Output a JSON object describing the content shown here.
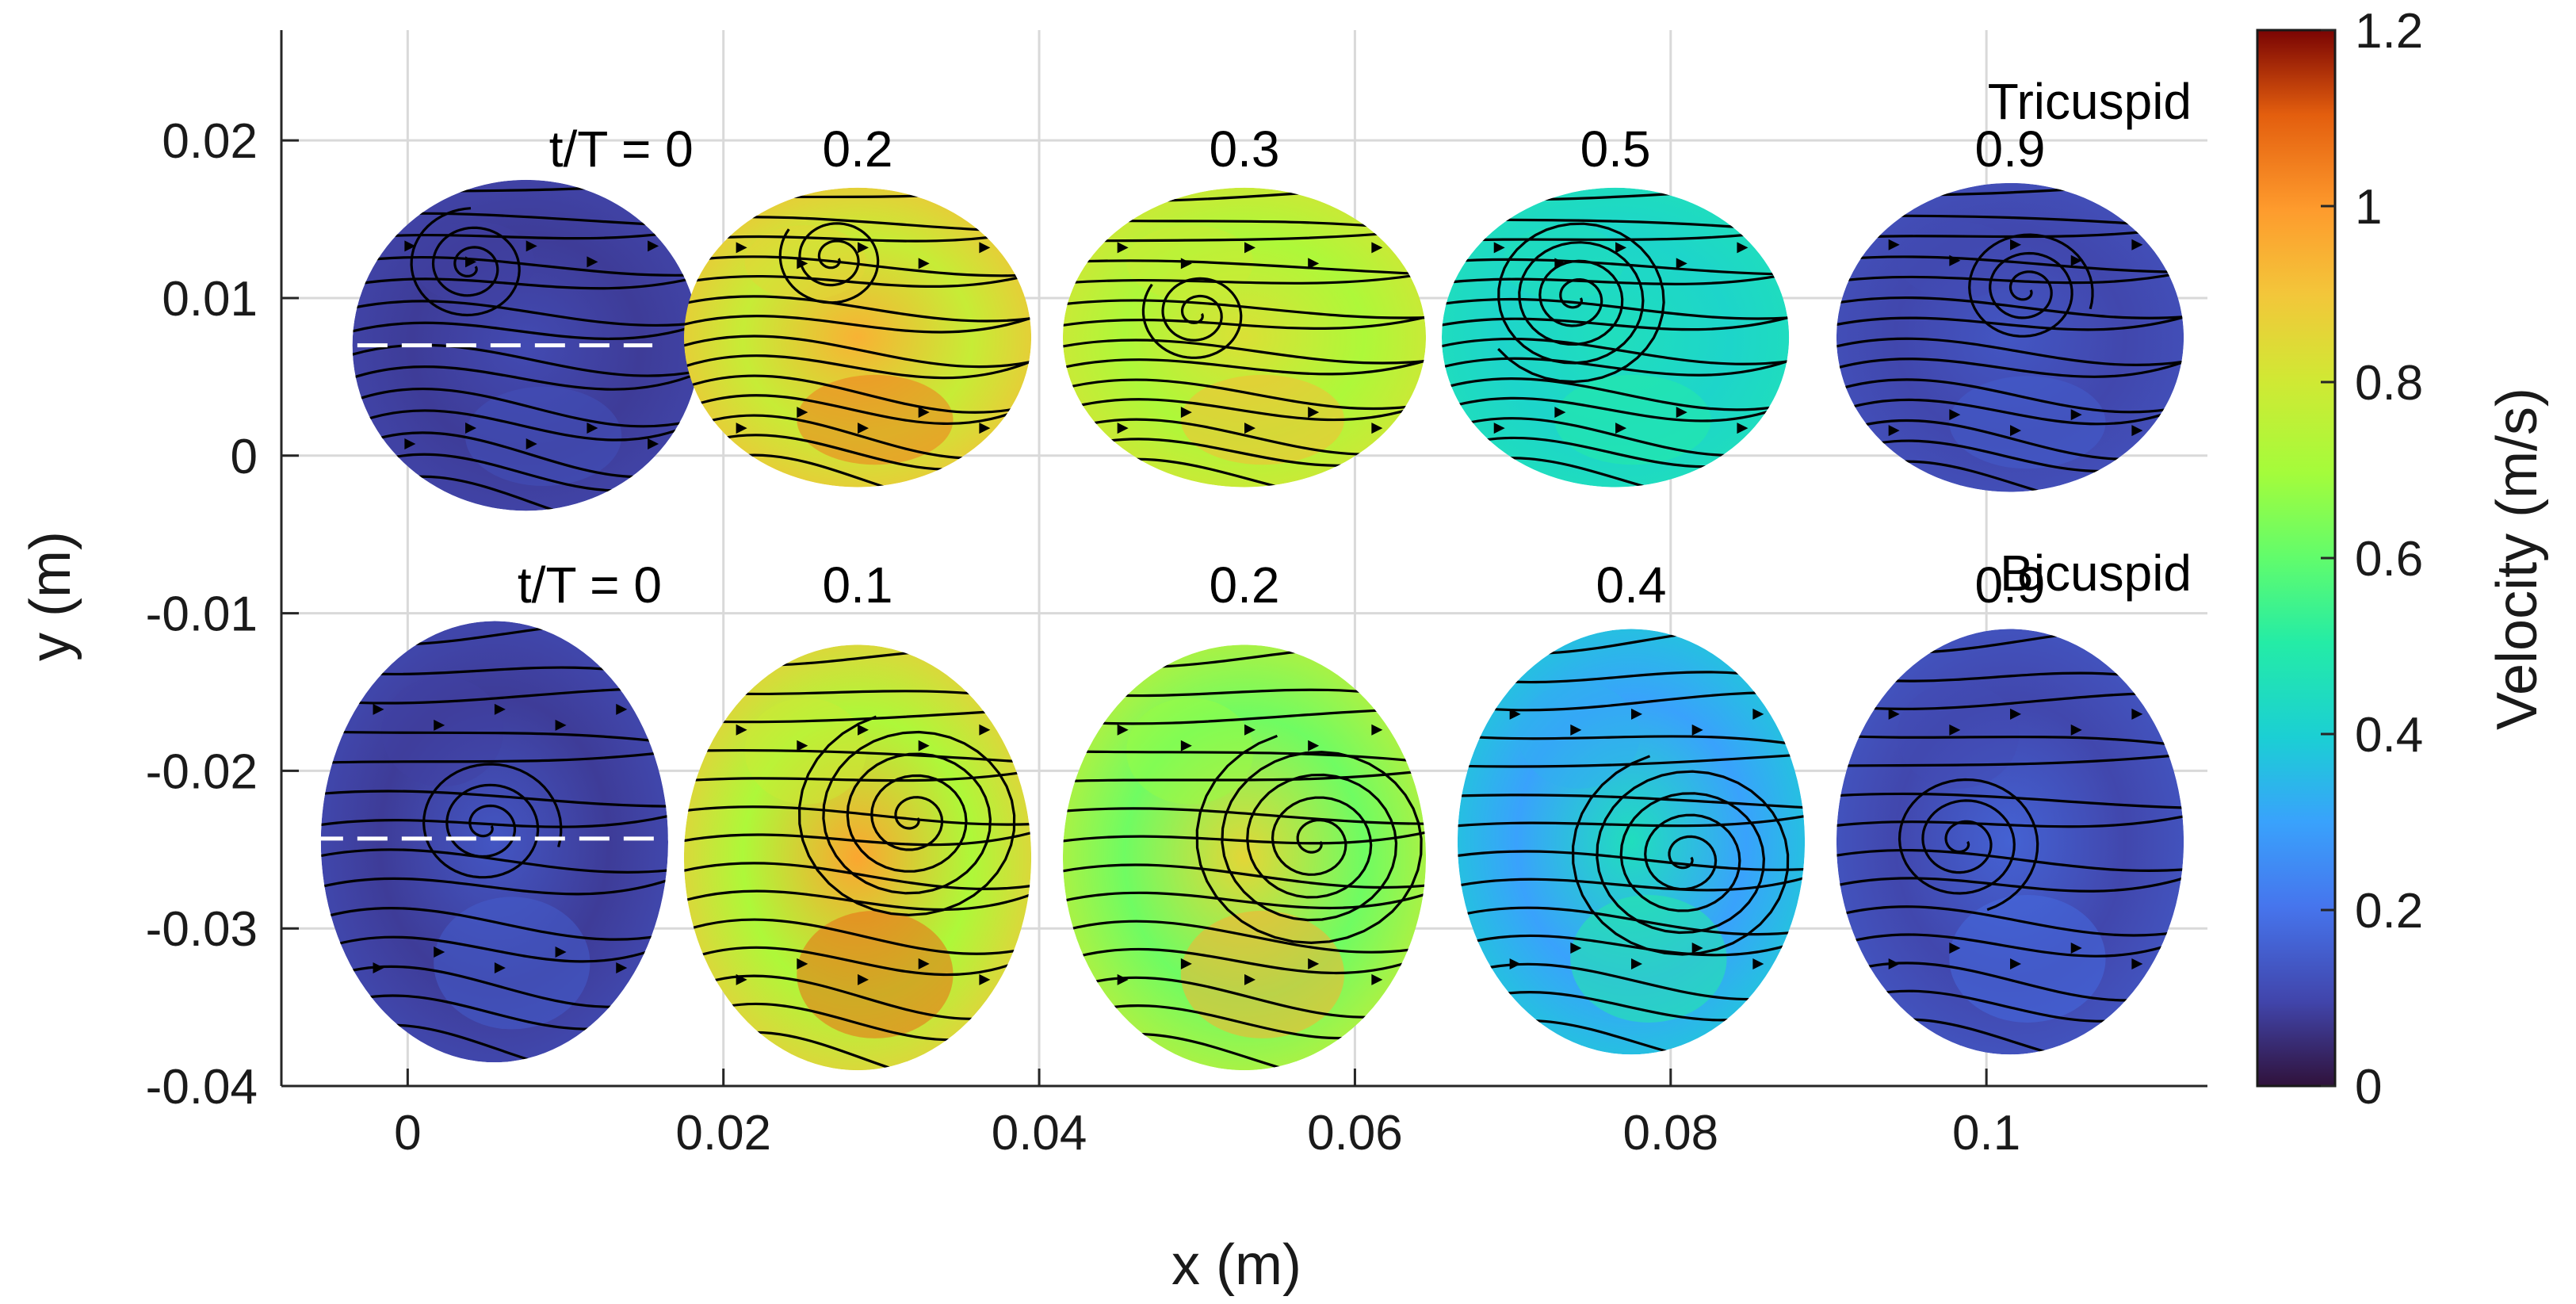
{
  "chart_data": {
    "type": "heatmap",
    "subtype": "velocity field maps with streamlines",
    "xlabel": "x (m)",
    "ylabel": "y (m)",
    "xlim": [
      -0.008,
      0.114
    ],
    "ylim": [
      -0.04,
      0.027
    ],
    "x_ticks": [
      "0",
      "0.02",
      "0.04",
      "0.06",
      "0.08",
      "0.1"
    ],
    "x_tick_values": [
      0,
      0.02,
      0.04,
      0.06,
      0.08,
      0.1
    ],
    "y_ticks": [
      "0.02",
      "0.01",
      "0",
      "-0.01",
      "-0.02",
      "-0.03",
      "-0.04"
    ],
    "y_tick_values": [
      0.02,
      0.01,
      0,
      -0.01,
      -0.02,
      -0.03,
      -0.04
    ],
    "grid": true,
    "colorbar": {
      "label": "Velocity (m/s)",
      "range": [
        0,
        1.2
      ],
      "ticks": [
        "1.2",
        "1",
        "0.8",
        "0.6",
        "0.4",
        "0.2",
        "0"
      ],
      "tick_values": [
        1.2,
        1.0,
        0.8,
        0.6,
        0.4,
        0.2,
        0
      ],
      "colormap": "turbo"
    },
    "rows": [
      {
        "valve": "Tricuspid",
        "panels": [
          {
            "label": "t/T = 0",
            "cx": 0.0075,
            "cy": 0.007,
            "rx": 0.011,
            "ry": 0.0105,
            "mean_velocity": 0.08,
            "hot_velocity": 0.12,
            "vortex": [
              0.004,
              0.012
            ],
            "swirl": 0.25
          },
          {
            "label": "0.2",
            "cx": 0.0285,
            "cy": 0.0075,
            "rx": 0.011,
            "ry": 0.0095,
            "mean_velocity": 0.78,
            "hot_velocity": 1.05,
            "vortex": [
              0.027,
              0.0125
            ],
            "swirl": 0.2
          },
          {
            "label": "0.3",
            "cx": 0.053,
            "cy": 0.0075,
            "rx": 0.0115,
            "ry": 0.0095,
            "mean_velocity": 0.72,
            "hot_velocity": 0.92,
            "vortex": [
              0.05,
              0.009
            ],
            "swirl": 0.2
          },
          {
            "label": "0.5",
            "cx": 0.0765,
            "cy": 0.0075,
            "rx": 0.011,
            "ry": 0.0095,
            "mean_velocity": 0.42,
            "hot_velocity": 0.5,
            "vortex": [
              0.074,
              0.01
            ],
            "swirl": 0.8
          },
          {
            "label": "0.9",
            "cx": 0.1015,
            "cy": 0.0075,
            "rx": 0.011,
            "ry": 0.0098,
            "mean_velocity": 0.1,
            "hot_velocity": 0.15,
            "vortex": [
              0.1025,
              0.0105
            ],
            "swirl": 0.35
          }
        ]
      },
      {
        "valve": "Bicuspid",
        "panels": [
          {
            "label": "t/T = 0",
            "cx": 0.0055,
            "cy": -0.0245,
            "rx": 0.011,
            "ry": 0.014,
            "mean_velocity": 0.08,
            "hot_velocity": 0.15,
            "vortex": [
              0.005,
              -0.0235
            ],
            "swirl": 0.35
          },
          {
            "label": "0.1",
            "cx": 0.0285,
            "cy": -0.0255,
            "rx": 0.011,
            "ry": 0.0135,
            "mean_velocity": 0.72,
            "hot_velocity": 1.08,
            "vortex": [
              0.032,
              -0.023
            ],
            "swirl": 0.9
          },
          {
            "label": "0.2",
            "cx": 0.053,
            "cy": -0.0255,
            "rx": 0.0115,
            "ry": 0.0135,
            "mean_velocity": 0.62,
            "hot_velocity": 0.95,
            "vortex": [
              0.0575,
              -0.0245
            ],
            "swirl": 0.9
          },
          {
            "label": "0.4",
            "cx": 0.0775,
            "cy": -0.0245,
            "rx": 0.011,
            "ry": 0.0135,
            "mean_velocity": 0.3,
            "hot_velocity": 0.5,
            "vortex": [
              0.081,
              -0.0255
            ],
            "swirl": 0.9
          },
          {
            "label": "0.9",
            "cx": 0.1015,
            "cy": -0.0245,
            "rx": 0.011,
            "ry": 0.0135,
            "mean_velocity": 0.1,
            "hot_velocity": 0.18,
            "vortex": [
              0.0985,
              -0.0245
            ],
            "swirl": 0.4
          }
        ]
      }
    ],
    "reference_lines": [
      {
        "row": "Tricuspid",
        "y": 0.007,
        "x_range": [
          -0.006,
          0.0155
        ],
        "style": "white dashed"
      },
      {
        "row": "Bicuspid",
        "y": -0.0243,
        "x_range": [
          -0.006,
          0.0165
        ],
        "style": "white dashed"
      }
    ]
  }
}
